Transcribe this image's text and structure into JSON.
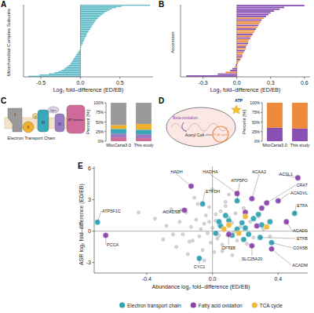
{
  "chart_data": [
    {
      "panel": "A",
      "type": "bar",
      "orientation": "horizontal",
      "x_label": "Log₂ fold–difference (ED/EB)",
      "y_label": "Mitochondrial Complex Subunits",
      "categories": [
        null,
        null,
        null,
        null,
        null,
        null,
        null,
        null,
        null,
        null,
        null,
        null,
        null,
        null,
        null,
        null,
        null,
        null,
        null,
        null,
        null,
        null,
        null,
        null,
        null,
        null,
        null,
        null,
        null,
        null,
        null,
        null,
        null,
        null,
        null,
        null,
        null,
        null,
        null,
        null,
        null,
        null,
        null,
        null,
        null,
        null,
        null,
        null,
        null,
        null,
        null,
        null,
        null,
        null,
        null,
        null,
        null,
        null,
        null,
        null
      ],
      "values": [
        0.88,
        0.52,
        0.45,
        0.4,
        0.37,
        0.34,
        0.31,
        0.29,
        0.27,
        0.25,
        0.23,
        0.22,
        0.2,
        0.19,
        0.18,
        0.17,
        0.16,
        0.15,
        0.14,
        0.13,
        0.12,
        0.11,
        0.1,
        0.09,
        0.08,
        0.08,
        0.07,
        0.06,
        0.05,
        0.05,
        0.04,
        0.03,
        0.03,
        0.02,
        0.01,
        0.01,
        0,
        -0.01,
        -0.02,
        -0.03,
        -0.04,
        -0.05,
        -0.06,
        -0.07,
        -0.08,
        -0.09,
        -0.1,
        -0.11,
        -0.12,
        -0.13,
        -0.15,
        -0.17,
        -0.19,
        -0.21,
        -0.24,
        -0.28,
        -0.33,
        -0.4,
        -0.52,
        -0.66
      ],
      "color": "#4bb3bf",
      "xlim": [
        -0.72,
        0.92
      ],
      "xticks": [
        -0.5,
        {
          "value": 0,
          "label": "0.0"
        },
        0.5
      ],
      "tick_labels": "x"
    },
    {
      "panel": "B",
      "type": "bar",
      "orientation": "horizontal",
      "x_label": "Log₂ fold–difference (ED/EB)",
      "y_label": "Accession",
      "categories": [
        null,
        null,
        null,
        null,
        null,
        null,
        null,
        null,
        null,
        null,
        null,
        null,
        null,
        null,
        null,
        null,
        null,
        null,
        null,
        null,
        null,
        null,
        null,
        null,
        null,
        null,
        null,
        null,
        null,
        null,
        null,
        null,
        null,
        null,
        null,
        null,
        null,
        null,
        null,
        null
      ],
      "values": [
        0.6,
        0.42,
        0.38,
        0.33,
        0.3,
        0.28,
        0.26,
        0.24,
        0.22,
        0.21,
        0.2,
        0.19,
        0.18,
        0.17,
        0.16,
        0.15,
        0.14,
        0.13,
        0.12,
        0.11,
        0.1,
        0.1,
        0.09,
        0.08,
        0.08,
        0.07,
        0.06,
        0.05,
        0.05,
        0.04,
        0.03,
        0.02,
        0.01,
        -0.01,
        -0.02,
        -0.04,
        -0.06,
        -0.1,
        -0.17,
        -0.45
      ],
      "colors": [
        "#8247b0",
        "#8247b0",
        "#8247b0",
        "#8247b0",
        "#8247b0",
        "#8247b0",
        "#8247b0",
        "#eb8a3a",
        "#8247b0",
        "#eb8a3a",
        "#eb8a3a",
        "#8247b0",
        "#eb8a3a",
        "#8247b0",
        "#eb8a3a",
        "#eb8a3a",
        "#8247b0",
        "#eb8a3a",
        "#8247b0",
        "#eb8a3a",
        "#eb8a3a",
        "#8247b0",
        "#eb8a3a",
        "#8247b0",
        "#eb8a3a",
        "#8247b0",
        "#eb8a3a",
        "#eb8a3a",
        "#8247b0",
        "#eb8a3a",
        "#8247b0",
        "#eb8a3a",
        "#eb8a3a",
        "#8247b0",
        "#eb8a3a",
        "#8247b0",
        "#8247b0",
        "#eb8a3a",
        "#8247b0",
        "#8247b0"
      ],
      "xlim": [
        -0.5,
        0.65
      ],
      "xticks": [
        -0.3,
        {
          "value": 0,
          "label": "0.0"
        },
        0.3,
        0.6
      ],
      "tick_labels": "x"
    },
    {
      "panel": "C",
      "type": "bar",
      "stacked": true,
      "y_label": "Percent [%]",
      "categories": [
        "MitoCarta3.0",
        "This study"
      ],
      "series": [
        {
          "color": "#d06a9a",
          "values": [
            10,
            8
          ]
        },
        {
          "color": "#9a7cc4",
          "values": [
            10,
            10
          ]
        },
        {
          "color": "#3aa8b8",
          "values": [
            12,
            12
          ]
        },
        {
          "color": "#f0b030",
          "values": [
            10,
            15
          ]
        },
        {
          "color": "#9a9a9a",
          "values": [
            58,
            55
          ]
        }
      ],
      "ylim": [
        0,
        100
      ],
      "yticks": [
        {
          "value": 0,
          "label": "0%"
        },
        {
          "value": 25,
          "label": "25%"
        },
        {
          "value": 50,
          "label": "50%"
        },
        {
          "value": 75,
          "label": "75%"
        },
        {
          "value": 100,
          "label": "100%"
        }
      ],
      "diagram": {
        "title": "Electron Transport Chain",
        "labels": [
          "I",
          "II",
          "Q",
          "III",
          "Cyt c",
          "IV",
          "ATP synthase"
        ]
      }
    },
    {
      "panel": "D",
      "type": "bar",
      "stacked": true,
      "y_label": "Percent [%]",
      "categories": [
        "MitoCarta3.0",
        "This study"
      ],
      "series": [
        {
          "color": "#8a4fb3",
          "values": [
            35,
            33
          ]
        },
        {
          "color": "#ef8a3c",
          "values": [
            65,
            67
          ]
        }
      ],
      "ylim": [
        0,
        100
      ],
      "yticks": [
        {
          "value": 0,
          "label": "0%"
        },
        {
          "value": 25,
          "label": "25%"
        },
        {
          "value": 50,
          "label": "50%"
        },
        {
          "value": 75,
          "label": "75%"
        },
        {
          "value": 100,
          "label": "100%"
        }
      ],
      "diagram": {
        "labels": [
          "Beta-oxidation",
          "Acetyl CoA",
          "TCA cycle",
          "ATP"
        ]
      }
    },
    {
      "panel": "E",
      "type": "scatter",
      "x_label": "Abundance log₂ fold–difference (ED/EB)",
      "y_label": "ASR log₂ fold–difference (ED/EB)",
      "xlim": [
        -0.72,
        0.58
      ],
      "xticks": [
        -0.4,
        {
          "value": 0,
          "label": "0.0"
        },
        0.4
      ],
      "ylim": [
        -4,
        6.2
      ],
      "yticks": [
        -3,
        0,
        3,
        6
      ],
      "legend": "bottom",
      "series": [
        {
          "color": "#bdbdbd",
          "x": [
            -0.35,
            -0.3,
            -0.28,
            -0.25,
            -0.22,
            -0.2,
            -0.18,
            -0.16,
            -0.15,
            -0.13,
            -0.12,
            -0.1,
            -0.09,
            -0.08,
            -0.07,
            -0.06,
            -0.05,
            -0.04,
            -0.03,
            -0.02,
            -0.01,
            0,
            0.01,
            0.02,
            0.03,
            0.04,
            0.05,
            0.06,
            0.07,
            0.08,
            0.09,
            0.1,
            0.11,
            0.12,
            0.13,
            0.14,
            0.15,
            0.17,
            0.19,
            0.21,
            0.23,
            0.25,
            0.28,
            0.31,
            -0.24,
            -0.11,
            -0.05,
            0.02,
            0.06,
            0.1,
            0.16,
            -0.19,
            -0.02,
            0.04,
            0.12,
            -0.45,
            0.35,
            -0.14,
            0,
            0.08
          ],
          "y": [
            1.2,
            -0.8,
            0.5,
            2.1,
            -1.5,
            0.9,
            -0.3,
            1.8,
            -2.2,
            0.4,
            -0.9,
            1.1,
            2.6,
            -0.5,
            0.2,
            -1.8,
            0.7,
            1.5,
            -0.2,
            2.3,
            -1.1,
            0.3,
            -2.0,
            1.0,
            -0.7,
            0.6,
            1.9,
            -1.3,
            0.1,
            2.8,
            -0.4,
            1.3,
            -1.6,
            0.8,
            -0.1,
            1.7,
            -0.9,
            0.4,
            2.2,
            -1.2,
            0.9,
            -0.6,
            1.4,
            0.2,
            -0.3,
            3.2,
            -2.8,
            1.6,
            -1.9,
            3.5,
            0,
            2.0,
            0.9,
            -0.4,
            -2.3,
            1.8,
            -0.5,
            -1.0,
            4.0,
            2.4
          ]
        },
        {
          "name": "Electron transport chain",
          "color": "#2fa3b3",
          "x": [
            -0.7,
            -0.06,
            0.15,
            0.5,
            0.29,
            0.36,
            -0.08,
            0.05,
            0.1,
            0.2,
            0.12,
            0.25,
            0.02,
            0.18,
            0.3,
            0.08,
            0.22,
            0.15,
            0.35,
            0.28,
            0.04,
            0.19
          ],
          "y": [
            0.85,
            2.6,
            2.9,
            1.7,
            -0.6,
            -1.1,
            -2.6,
            0.5,
            1.0,
            0.3,
            -0.4,
            1.2,
            -0.2,
            0.8,
            0.6,
            1.5,
            -0.3,
            0.2,
            0.9,
            1.6,
            0.9,
            -0.8
          ],
          "labels": [
            "ATP5F1C",
            "ETFDH",
            "ATP5PO",
            "ETFA",
            "ETFB",
            "COX5B",
            "CYC1",
            null,
            null,
            null,
            null,
            null,
            null,
            null,
            null,
            null,
            null,
            null,
            null,
            null,
            null,
            null
          ]
        },
        {
          "name": "Fatty acid oxidation",
          "color": "#8e44ad",
          "x": [
            -0.65,
            -0.13,
            -0.17,
            0.15,
            0.24,
            0.33,
            0.52,
            0.4,
            0.45,
            0.1,
            0.24,
            0.36,
            0.2,
            0.3,
            0.27
          ],
          "y": [
            -0.4,
            4.3,
            2.0,
            3.6,
            3.1,
            2.7,
            5.1,
            2.9,
            0.9,
            -0.3,
            -1.4,
            -1.7,
            1.8,
            2.2,
            0.5
          ],
          "labels": [
            "PCCA",
            "HADH",
            "ACADSB",
            "HADHA",
            "ACAA2",
            "CRAT",
            "ACSL1",
            "ACADVL",
            "ACADS",
            "CPT1B",
            "SLC25A20",
            "ACADM",
            null,
            null,
            null
          ]
        },
        {
          "name": "TCA cycle",
          "color": "#f2b632",
          "x": [
            0.1,
            0.2,
            0.16,
            0.33,
            0.07
          ],
          "y": [
            0.6,
            1.4,
            -0.2,
            0.4,
            0.2
          ],
          "labels": [
            null,
            null,
            null,
            null,
            null
          ]
        }
      ]
    }
  ]
}
